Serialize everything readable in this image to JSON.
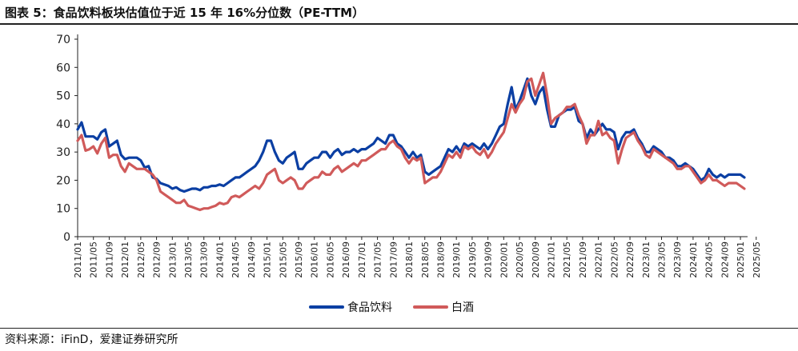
{
  "title": "图表 5：食品饮料板块估值位于近 15 年 16%分位数（PE-TTM）",
  "source": "资料来源：iFinD，爱建证券研究所",
  "colors": {
    "food_beverage": "#0b3fa3",
    "baijiu": "#d05a5a"
  },
  "chart_data": {
    "type": "line",
    "title": "图表 5：食品饮料板块估值位于近 15 年 16%分位数（PE-TTM）",
    "xlabel": "",
    "ylabel": "",
    "ylim": [
      0,
      70
    ],
    "yticks": [
      0,
      10,
      20,
      30,
      40,
      50,
      60,
      70
    ],
    "grid": false,
    "legend": "bottom-center",
    "x_start": "2011/01",
    "x_labels": [
      "2011/01",
      "2011/05",
      "2011/09",
      "2012/01",
      "2012/05",
      "2012/09",
      "2013/01",
      "2013/05",
      "2013/09",
      "2014/01",
      "2014/05",
      "2014/09",
      "2015/01",
      "2015/05",
      "2015/09",
      "2016/01",
      "2016/05",
      "2016/09",
      "2017/01",
      "2017/05",
      "2017/09",
      "2018/01",
      "2018/05",
      "2018/09",
      "2019/01",
      "2019/05",
      "2019/09",
      "2020/01",
      "2020/05",
      "2020/09",
      "2021/01",
      "2021/05",
      "2021/09",
      "2022/01",
      "2022/05",
      "2022/09",
      "2023/01",
      "2023/05",
      "2023/09",
      "2024/01",
      "2024/05",
      "2024/09",
      "2025/01",
      "2025/05"
    ],
    "series": [
      {
        "name": "食品饮料",
        "color": "#0b3fa3",
        "values": [
          38,
          40.5,
          35.5,
          35.5,
          35.5,
          34.5,
          37,
          38,
          32,
          33,
          34,
          29,
          27.5,
          28,
          28,
          28,
          27,
          24.5,
          25,
          21,
          20.5,
          19,
          18.5,
          18,
          17,
          17.5,
          16.5,
          16,
          16.5,
          17,
          17,
          16.5,
          17.5,
          17.5,
          18,
          18,
          18.5,
          18,
          19,
          20,
          21,
          21,
          22,
          23,
          24,
          25,
          27,
          30,
          34,
          34,
          30,
          27,
          26,
          28,
          29,
          30,
          24,
          24,
          26,
          27,
          28,
          28,
          30,
          30,
          28,
          30,
          31,
          29,
          30,
          30,
          31,
          30,
          31,
          31,
          32,
          33,
          35,
          34,
          33,
          36,
          36,
          33,
          32,
          30,
          28,
          30,
          28,
          29,
          23,
          22,
          23,
          24,
          25,
          28,
          31,
          30,
          32,
          30,
          33,
          32,
          33,
          32,
          31,
          33,
          31,
          33,
          36,
          39,
          40,
          47,
          53,
          45,
          48,
          52,
          56,
          50,
          47,
          51,
          53,
          45,
          39,
          39,
          43,
          44,
          45,
          45,
          46,
          41,
          40,
          35,
          38,
          36,
          38,
          40,
          38,
          38,
          37,
          31,
          35,
          37,
          37,
          38,
          35,
          33,
          30,
          30,
          32,
          31,
          30,
          28,
          28,
          27,
          25,
          25,
          26,
          25,
          24,
          22,
          20,
          21,
          24,
          22,
          21,
          22,
          21,
          22,
          22,
          22,
          22,
          21
        ]
      },
      {
        "name": "白酒",
        "color": "#d05a5a",
        "values": [
          34,
          36,
          30.5,
          31,
          32,
          29.5,
          33,
          35,
          28,
          29,
          29,
          25,
          23,
          26,
          25,
          24,
          24,
          24,
          23,
          22,
          20,
          16,
          15,
          14,
          13,
          12,
          12,
          13,
          11,
          10.5,
          10,
          9.5,
          10,
          10,
          10.5,
          11,
          12,
          11.5,
          12,
          14,
          14.5,
          14,
          15,
          16,
          17,
          18,
          17,
          19,
          22,
          23,
          24,
          20,
          19,
          20,
          21,
          20,
          17,
          17,
          19,
          20,
          21,
          21,
          23,
          22,
          22,
          24,
          25,
          23,
          24,
          25,
          26,
          25,
          27,
          27,
          28,
          29,
          30,
          31,
          31,
          33,
          34,
          32,
          31,
          28,
          26,
          28,
          27,
          28,
          19,
          20,
          21,
          21,
          23,
          26,
          29,
          28,
          30,
          28,
          32,
          31,
          32,
          30,
          29,
          31,
          28,
          30,
          33,
          35,
          37,
          42,
          47,
          44,
          47,
          49,
          55,
          56,
          50,
          54,
          58,
          50,
          40,
          42,
          43,
          44,
          46,
          46,
          47,
          43,
          40,
          33,
          36,
          36,
          41,
          36,
          37,
          35,
          34,
          26,
          31,
          35,
          36,
          37,
          34,
          32,
          29,
          28,
          31,
          30,
          29,
          28,
          27,
          26,
          24,
          24,
          25,
          25,
          23,
          21,
          19,
          20,
          22,
          20,
          20,
          19,
          18,
          19,
          19,
          19,
          18,
          17
        ]
      }
    ]
  }
}
